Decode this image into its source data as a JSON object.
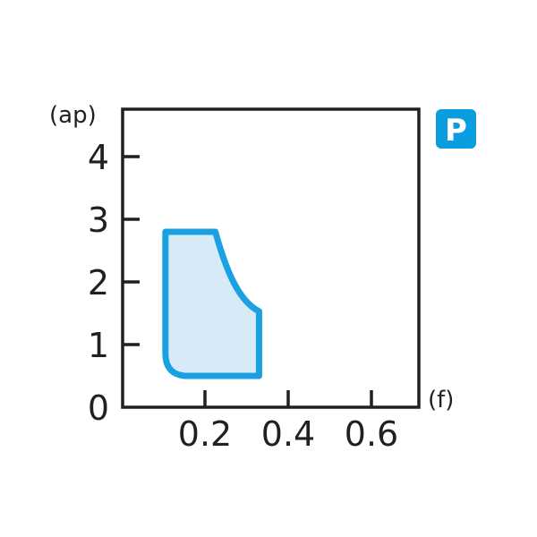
{
  "chart_data": {
    "type": "area",
    "xlabel": "(f)",
    "ylabel": "(ap)",
    "xlim": [
      0,
      0.714
    ],
    "ylim": [
      0,
      4.76
    ],
    "x_ticks": [
      "0.2",
      "0.4",
      "0.6"
    ],
    "x_tick_values": [
      0.2,
      0.4,
      0.6
    ],
    "y_ticks": [
      "0",
      "1",
      "2",
      "3",
      "4"
    ],
    "y_tick_values": [
      0,
      1,
      2,
      3,
      4
    ],
    "grid": false,
    "region": {
      "description_points": [
        [
          0.105,
          2.8
        ],
        [
          0.225,
          2.8
        ],
        [
          0.33,
          1.53
        ],
        [
          0.33,
          0.5
        ],
        [
          0.16,
          0.5
        ],
        [
          0.105,
          0.86
        ]
      ],
      "stroke_color": "#1ba1e2",
      "fill_color": "#d6eaf8"
    },
    "badge": {
      "label": "P",
      "color": "#0a9ee0"
    }
  }
}
